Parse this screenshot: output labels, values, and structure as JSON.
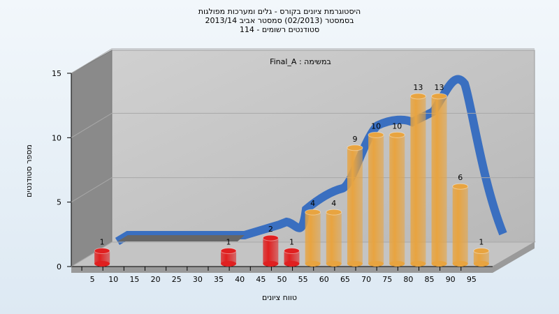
{
  "chart_data": {
    "type": "bar3d",
    "title": [
      "היסטוגרמת ציונים בקורס - גלים ומערכות מפולגות",
      "בסמסטר (02/2013) סמסטר אביב 2013/14",
      "114 - סטודנטים רשומים"
    ],
    "subtitle": "Final_A : במשימה",
    "x_label": "טווח ציונים",
    "y_label": "מספר סטודנטים",
    "categories": [
      "5",
      "10",
      "15",
      "20",
      "25",
      "30",
      "35",
      "40",
      "45",
      "50",
      "55",
      "60",
      "65",
      "70",
      "75",
      "80",
      "85",
      "90",
      "95"
    ],
    "values": [
      1,
      0,
      0,
      0,
      0,
      0,
      1,
      0,
      2,
      1,
      4,
      4,
      9,
      10,
      10,
      13,
      13,
      6,
      1
    ],
    "colors": [
      "#e02020",
      "#e02020",
      "#e02020",
      "#e02020",
      "#e02020",
      "#e02020",
      "#e02020",
      "#e02020",
      "#e02020",
      "#e02020",
      "#e8a440",
      "#e8a440",
      "#e8a440",
      "#e8a440",
      "#e8a440",
      "#e8a440",
      "#e8a440",
      "#e8a440",
      "#e8a440"
    ],
    "ylim": [
      0,
      15
    ],
    "yticks": [
      0,
      5,
      10,
      15
    ],
    "grid": true
  }
}
